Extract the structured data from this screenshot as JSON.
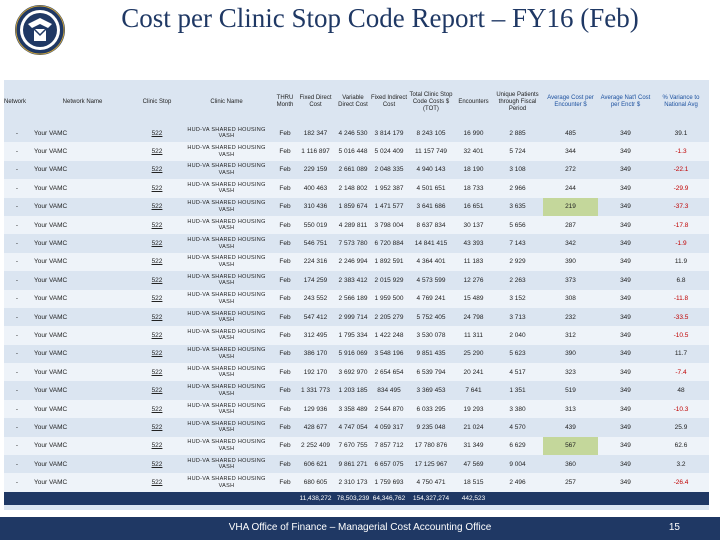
{
  "title": "Cost per Clinic Stop Code Report – FY16 (Feb)",
  "headers": {
    "network": "Network",
    "network_name": "Network Name",
    "clinic_stop": "Clinic Stop",
    "clinic_name": "Clinic Name",
    "thru_month": "THRU Month",
    "fixed_direct_cost": "Fixed Direct Cost",
    "variable_direct_cost": "Variable Direct Cost",
    "fixed_indirect_cost": "Fixed Indirect Cost",
    "total_clinic_stop_costs": "Total Clinic Stop Code Costs $ (TOT)",
    "encounters": "Encounters",
    "unique_patients": "Unique Patients through Fiscal Period",
    "avg_cost_per_encounter": "Average Cost per Encounter $",
    "avg_natl": "Average Nat'l Cost per Enctr $",
    "pct_variance": "% Variance to National Avg"
  },
  "rows": [
    {
      "net": "-",
      "name": "Your VAMC",
      "stop": "522",
      "clinic": "HUD-VA SHARED HOUSING VASH",
      "month": "Feb",
      "fdc": "182 347",
      "vdc": "4 246 530",
      "fic": "3 814 179",
      "tot": "8 243 105",
      "enc": "16 990",
      "uniq": "2 885",
      "avg": "485",
      "natl": "349",
      "var": "39.1",
      "hl": false,
      "neg": false
    },
    {
      "net": "-",
      "name": "Your VAMC",
      "stop": "522",
      "clinic": "HUD-VA SHARED HOUSING VASH",
      "month": "Feb",
      "fdc": "1 116 897",
      "vdc": "5 016 448",
      "fic": "5 024 409",
      "tot": "11 157 749",
      "enc": "32 401",
      "uniq": "5 724",
      "avg": "344",
      "natl": "349",
      "var": "-1.3",
      "hl": false,
      "neg": true
    },
    {
      "net": "-",
      "name": "Your VAMC",
      "stop": "522",
      "clinic": "HUD-VA SHARED HOUSING VASH",
      "month": "Feb",
      "fdc": "229 159",
      "vdc": "2 661 089",
      "fic": "2 048 335",
      "tot": "4 940 143",
      "enc": "18 190",
      "uniq": "3 108",
      "avg": "272",
      "natl": "349",
      "var": "-22.1",
      "hl": false,
      "neg": true
    },
    {
      "net": "-",
      "name": "Your VAMC",
      "stop": "522",
      "clinic": "HUD-VA SHARED HOUSING VASH",
      "month": "Feb",
      "fdc": "400 463",
      "vdc": "2 148 802",
      "fic": "1 952 387",
      "tot": "4 501 651",
      "enc": "18 733",
      "uniq": "2 966",
      "avg": "244",
      "natl": "349",
      "var": "-29.9",
      "hl": false,
      "neg": true
    },
    {
      "net": "-",
      "name": "Your VAMC",
      "stop": "522",
      "clinic": "HUD-VA SHARED HOUSING VASH",
      "month": "Feb",
      "fdc": "310 436",
      "vdc": "1 859 674",
      "fic": "1 471 577",
      "tot": "3 641 686",
      "enc": "16 651",
      "uniq": "3 635",
      "avg": "219",
      "natl": "349",
      "var": "-37.3",
      "hl": true,
      "neg": true
    },
    {
      "net": "-",
      "name": "Your VAMC",
      "stop": "522",
      "clinic": "HUD-VA SHARED HOUSING VASH",
      "month": "Feb",
      "fdc": "550 019",
      "vdc": "4 289 811",
      "fic": "3 798 004",
      "tot": "8 637 834",
      "enc": "30 137",
      "uniq": "5 656",
      "avg": "287",
      "natl": "349",
      "var": "-17.8",
      "hl": false,
      "neg": true
    },
    {
      "net": "-",
      "name": "Your VAMC",
      "stop": "522",
      "clinic": "HUD-VA SHARED HOUSING VASH",
      "month": "Feb",
      "fdc": "546 751",
      "vdc": "7 573 780",
      "fic": "6 720 884",
      "tot": "14 841 415",
      "enc": "43 393",
      "uniq": "7 143",
      "avg": "342",
      "natl": "349",
      "var": "-1.9",
      "hl": false,
      "neg": true
    },
    {
      "net": "-",
      "name": "Your VAMC",
      "stop": "522",
      "clinic": "HUD-VA SHARED HOUSING VASH",
      "month": "Feb",
      "fdc": "224 316",
      "vdc": "2 246 994",
      "fic": "1 892 591",
      "tot": "4 364 401",
      "enc": "11 183",
      "uniq": "2 929",
      "avg": "390",
      "natl": "349",
      "var": "11.9",
      "hl": false,
      "neg": false
    },
    {
      "net": "-",
      "name": "Your VAMC",
      "stop": "522",
      "clinic": "HUD-VA SHARED HOUSING VASH",
      "month": "Feb",
      "fdc": "174 259",
      "vdc": "2 383 412",
      "fic": "2 015 929",
      "tot": "4 573 599",
      "enc": "12 276",
      "uniq": "2 263",
      "avg": "373",
      "natl": "349",
      "var": "6.8",
      "hl": false,
      "neg": false
    },
    {
      "net": "-",
      "name": "Your VAMC",
      "stop": "522",
      "clinic": "HUD-VA SHARED HOUSING VASH",
      "month": "Feb",
      "fdc": "243 552",
      "vdc": "2 566 189",
      "fic": "1 959 500",
      "tot": "4 769 241",
      "enc": "15 489",
      "uniq": "3 152",
      "avg": "308",
      "natl": "349",
      "var": "-11.8",
      "hl": false,
      "neg": true
    },
    {
      "net": "-",
      "name": "Your VAMC",
      "stop": "522",
      "clinic": "HUD-VA SHARED HOUSING VASH",
      "month": "Feb",
      "fdc": "547 412",
      "vdc": "2 999 714",
      "fic": "2 205 279",
      "tot": "5 752 405",
      "enc": "24 798",
      "uniq": "3 713",
      "avg": "232",
      "natl": "349",
      "var": "-33.5",
      "hl": false,
      "neg": true
    },
    {
      "net": "-",
      "name": "Your VAMC",
      "stop": "522",
      "clinic": "HUD-VA SHARED HOUSING VASH",
      "month": "Feb",
      "fdc": "312 495",
      "vdc": "1 795 334",
      "fic": "1 422 248",
      "tot": "3 530 078",
      "enc": "11 311",
      "uniq": "2 040",
      "avg": "312",
      "natl": "349",
      "var": "-10.5",
      "hl": false,
      "neg": true
    },
    {
      "net": "-",
      "name": "Your VAMC",
      "stop": "522",
      "clinic": "HUD-VA SHARED HOUSING VASH",
      "month": "Feb",
      "fdc": "386 170",
      "vdc": "5 916 069",
      "fic": "3 548 196",
      "tot": "9 851 435",
      "enc": "25 290",
      "uniq": "5 623",
      "avg": "390",
      "natl": "349",
      "var": "11.7",
      "hl": false,
      "neg": false
    },
    {
      "net": "-",
      "name": "Your VAMC",
      "stop": "522",
      "clinic": "HUD-VA SHARED HOUSING VASH",
      "month": "Feb",
      "fdc": "192 170",
      "vdc": "3 692 970",
      "fic": "2 654 654",
      "tot": "6 539 794",
      "enc": "20 241",
      "uniq": "4 517",
      "avg": "323",
      "natl": "349",
      "var": "-7.4",
      "hl": false,
      "neg": true
    },
    {
      "net": "-",
      "name": "Your VAMC",
      "stop": "522",
      "clinic": "HUD-VA SHARED HOUSING VASH",
      "month": "Feb",
      "fdc": "1 331 773",
      "vdc": "1 203 185",
      "fic": "834 495",
      "tot": "3 369 453",
      "enc": "7 641",
      "uniq": "1 351",
      "avg": "519",
      "natl": "349",
      "var": "48",
      "hl": false,
      "neg": false
    },
    {
      "net": "-",
      "name": "Your VAMC",
      "stop": "522",
      "clinic": "HUD-VA SHARED HOUSING VASH",
      "month": "Feb",
      "fdc": "129 936",
      "vdc": "3 358 489",
      "fic": "2 544 870",
      "tot": "6 033 295",
      "enc": "19 293",
      "uniq": "3 380",
      "avg": "313",
      "natl": "349",
      "var": "-10.3",
      "hl": false,
      "neg": true
    },
    {
      "net": "-",
      "name": "Your VAMC",
      "stop": "522",
      "clinic": "HUD-VA SHARED HOUSING VASH",
      "month": "Feb",
      "fdc": "428 677",
      "vdc": "4 747 054",
      "fic": "4 059 317",
      "tot": "9 235 048",
      "enc": "21 024",
      "uniq": "4 570",
      "avg": "439",
      "natl": "349",
      "var": "25.9",
      "hl": false,
      "neg": false
    },
    {
      "net": "-",
      "name": "Your VAMC",
      "stop": "522",
      "clinic": "HUD-VA SHARED HOUSING VASH",
      "month": "Feb",
      "fdc": "2 252 409",
      "vdc": "7 670 755",
      "fic": "7 857 712",
      "tot": "17 780 876",
      "enc": "31 349",
      "uniq": "6 629",
      "avg": "567",
      "natl": "349",
      "var": "62.6",
      "hl": true,
      "neg": false
    },
    {
      "net": "-",
      "name": "Your VAMC",
      "stop": "522",
      "clinic": "HUD-VA SHARED HOUSING VASH",
      "month": "Feb",
      "fdc": "606 621",
      "vdc": "9 861 271",
      "fic": "6 657 075",
      "tot": "17 125 967",
      "enc": "47 569",
      "uniq": "9 004",
      "avg": "360",
      "natl": "349",
      "var": "3.2",
      "hl": false,
      "neg": false
    },
    {
      "net": "-",
      "name": "Your VAMC",
      "stop": "522",
      "clinic": "HUD-VA SHARED HOUSING VASH",
      "month": "Feb",
      "fdc": "680 605",
      "vdc": "2 310 173",
      "fic": "1 759 693",
      "tot": "4 750 471",
      "enc": "18 515",
      "uniq": "2 496",
      "avg": "257",
      "natl": "349",
      "var": "-26.4",
      "hl": false,
      "neg": true
    }
  ],
  "totals": {
    "fdc": "11,438,272",
    "vdc": "78,503,239",
    "fic": "64,346,762",
    "tot": "154,327,274",
    "enc": "442,523"
  },
  "footer": {
    "text": "VHA Office of Finance – Managerial Cost Accounting Office",
    "page": "15"
  },
  "colors": {
    "navy": "#1f3864",
    "header_blue": "#1a4f9e",
    "row_band": "#dbe5f1",
    "highlight_green": "#c4d79b",
    "negative_red": "#c00000"
  },
  "icons": {
    "logo": "va-seal-icon"
  }
}
